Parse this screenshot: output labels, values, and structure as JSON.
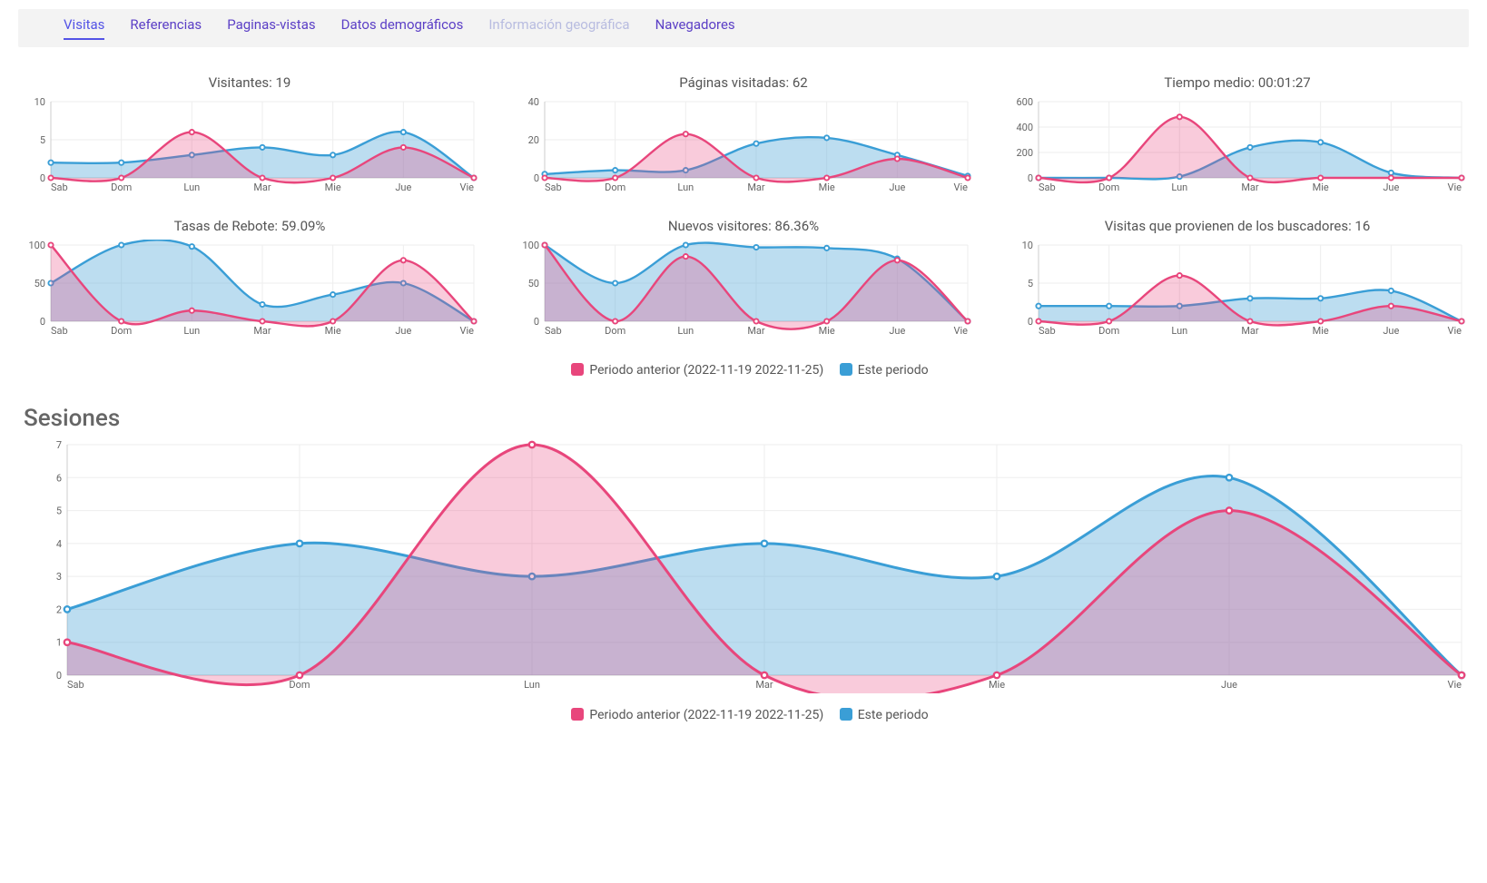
{
  "colors": {
    "pink": "#e8467c",
    "pink_fill": "rgba(232,70,124,0.28)",
    "blue": "#3a9ed6",
    "blue_fill": "rgba(88,170,217,0.40)",
    "axis": "#cccccc",
    "grid": "#eeeeee",
    "text": "#666666",
    "tab_active": "#5353e6",
    "tab_normal": "#5b3fc6",
    "tab_muted": "#b8bce0",
    "tabbar_bg": "#f3f3f3"
  },
  "tabs": [
    {
      "label": "Visitas",
      "state": "active"
    },
    {
      "label": "Referencias",
      "state": "normal"
    },
    {
      "label": "Paginas-vistas",
      "state": "normal"
    },
    {
      "label": "Datos demográficos",
      "state": "normal"
    },
    {
      "label": "Información geográfica",
      "state": "muted"
    },
    {
      "label": "Navegadores",
      "state": "normal"
    }
  ],
  "x_categories": [
    "Sab",
    "Dom",
    "Lun",
    "Mar",
    "Mie",
    "Jue",
    "Vie"
  ],
  "minis": [
    {
      "title": "Visitantes: 19",
      "ymax": 10,
      "yticks": [
        0,
        5,
        10
      ],
      "prev": [
        0,
        0,
        6,
        0,
        0,
        4,
        0
      ],
      "curr": [
        2,
        2,
        3,
        4,
        3,
        6,
        0
      ]
    },
    {
      "title": "Páginas visitadas: 62",
      "ymax": 40,
      "yticks": [
        0,
        20,
        40
      ],
      "prev": [
        0,
        0,
        23,
        0,
        0,
        10,
        0
      ],
      "curr": [
        2,
        4,
        4,
        18,
        21,
        12,
        1
      ]
    },
    {
      "title": "Tiempo medio: 00:01:27",
      "ymax": 600,
      "yticks": [
        0,
        200,
        400,
        600
      ],
      "prev": [
        0,
        0,
        480,
        0,
        0,
        0,
        0
      ],
      "curr": [
        0,
        0,
        10,
        240,
        280,
        40,
        0
      ]
    },
    {
      "title": "Tasas de Rebote: 59.09%",
      "ymax": 100,
      "yticks": [
        0,
        50,
        100
      ],
      "prev": [
        100,
        0,
        14,
        0,
        0,
        80,
        0
      ],
      "curr": [
        50,
        100,
        98,
        22,
        35,
        50,
        0
      ]
    },
    {
      "title": "Nuevos visitores: 86.36%",
      "ymax": 100,
      "yticks": [
        0,
        50,
        100
      ],
      "prev": [
        100,
        0,
        85,
        0,
        0,
        80,
        0
      ],
      "curr": [
        100,
        50,
        100,
        97,
        96,
        82,
        0
      ]
    },
    {
      "title": "Visitas que provienen de los buscadores: 16",
      "ymax": 10,
      "yticks": [
        0,
        5,
        10
      ],
      "prev": [
        0,
        0,
        6,
        0,
        0,
        2,
        0
      ],
      "curr": [
        2,
        2,
        2,
        3,
        3,
        4,
        0
      ]
    }
  ],
  "legend": {
    "prev_label": "Periodo anterior (2022-11-19 2022-11-25)",
    "curr_label": "Este periodo"
  },
  "sessions": {
    "heading": "Sesiones",
    "ymax": 7,
    "yticks": [
      0,
      1,
      2,
      3,
      4,
      5,
      6,
      7
    ],
    "prev": [
      1,
      0,
      7,
      0,
      0,
      5,
      0
    ],
    "curr": [
      2,
      4,
      3,
      4,
      3,
      6,
      0
    ]
  },
  "chart_style": {
    "line_width": 2.4,
    "line_width_big": 3,
    "marker_radius": 2.6,
    "marker_radius_big": 3.2,
    "smoothing": 0.33
  }
}
